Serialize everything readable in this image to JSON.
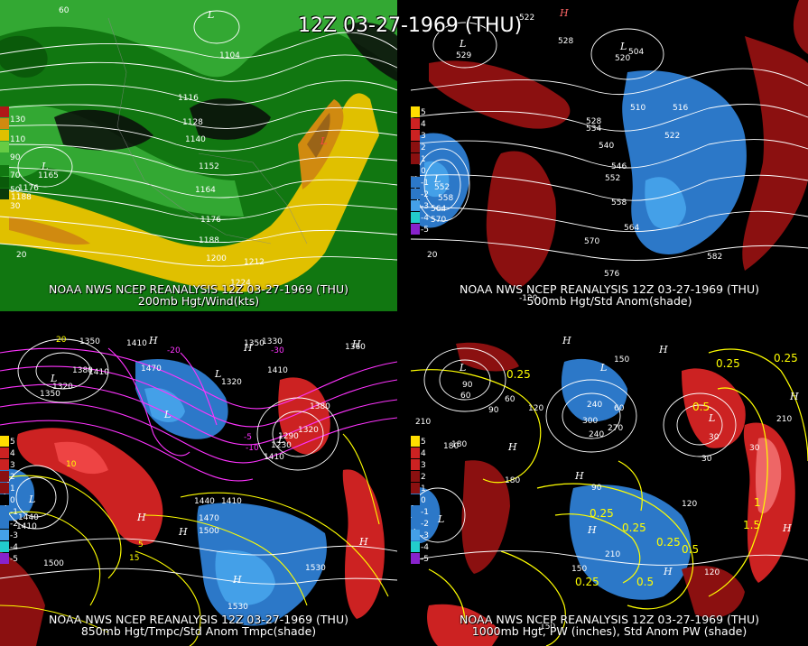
{
  "header": {
    "title": "12Z 03-27-1969 (THU)"
  },
  "panels": [
    {
      "id": "p1",
      "caption_line1": "NOAA NWS NCEP REANALYSIS 12Z 03-27-1969 (THU)",
      "caption_line2": "200mb Hgt/Wind(kts)",
      "legend": [
        "130",
        "110",
        "90",
        "70",
        "50",
        "30"
      ],
      "contour_labels": [
        "1104",
        "1116",
        "1128",
        "1140",
        "1152",
        "1164",
        "1176",
        "1188",
        "1200",
        "1212",
        "1224",
        "1176",
        "1188",
        "1165",
        "20",
        "60"
      ],
      "centers": [
        "L",
        "L",
        "L"
      ]
    },
    {
      "id": "p2",
      "caption_line1": "NOAA NWS NCEP REANALYSIS 12Z 03-27-1969 (THU)",
      "caption_line2": "500mb Hgt/Std Anom(shade)",
      "legend": [
        "5",
        "4",
        "3",
        "2",
        "1",
        "0",
        "-1",
        "-2",
        "-3",
        "-4",
        "-5"
      ],
      "contour_labels": [
        "522",
        "528",
        "504",
        "510",
        "516",
        "522",
        "528",
        "534",
        "540",
        "546",
        "552",
        "558",
        "564",
        "570",
        "576",
        "582",
        "552",
        "558",
        "564",
        "570",
        "20",
        "-120",
        "529",
        "520"
      ],
      "centers": [
        "H",
        "L",
        "L",
        "L"
      ]
    },
    {
      "id": "p3",
      "caption_line1": "NOAA NWS NCEP REANALYSIS 12Z 03-27-1969 (THU)",
      "caption_line2": "850mb Hgt/Tmpc/Std Anom Tmpc(shade)",
      "legend": [
        "5",
        "4",
        "3",
        "2",
        "1",
        "0",
        "-1",
        "-2",
        "-3",
        "-4",
        "-5"
      ],
      "contour_labels": [
        "1350",
        "1380",
        "1320",
        "1350",
        "1410",
        "1470",
        "1410",
        "1320",
        "1350",
        "1410",
        "1330",
        "1360",
        "1380",
        "1290",
        "1320",
        "1230",
        "1410",
        "1440",
        "1410",
        "1470",
        "1500",
        "1530",
        "1530",
        "1500",
        "1440",
        "1410",
        "10",
        "5",
        "15",
        "-5",
        "-10",
        "20",
        "-20",
        "-30"
      ],
      "centers": [
        "H",
        "H",
        "H",
        "L",
        "L",
        "L",
        "L",
        "H",
        "H",
        "H",
        "H",
        "L"
      ]
    },
    {
      "id": "p4",
      "caption_line1": "NOAA NWS NCEP REANALYSIS 12Z 03-27-1969 (THU)",
      "caption_line2": "1000mb Hgt, PW (inches), Std Anom PW (shade)",
      "legend": [
        "5",
        "4",
        "3",
        "2",
        "1",
        "0",
        "-1",
        "-2",
        "-3",
        "-4",
        "-5"
      ],
      "contour_labels": [
        "0.25",
        "0.5",
        "0.25",
        "0.25",
        "0.25",
        "0.5",
        "0.25",
        "0.25",
        "0.5",
        "1.5",
        "0.25",
        "1",
        "30",
        "60",
        "90",
        "120",
        "150",
        "180",
        "210",
        "240",
        "270",
        "300",
        "180",
        "210",
        "150",
        "120",
        "90",
        "60",
        "30",
        "210",
        "240",
        "180",
        "150",
        "120",
        "90",
        "60",
        "30"
      ],
      "centers": [
        "H",
        "L",
        "L",
        "H",
        "H",
        "H",
        "H",
        "L",
        "H",
        "H",
        "L",
        "H"
      ]
    }
  ],
  "colors": {
    "background": "#000000",
    "wind_green_dark": "#117711",
    "wind_green": "#33a833",
    "wind_green_light": "#66cc44",
    "wind_yellow": "#e0c000",
    "wind_orange": "#d08a10",
    "wind_brown": "#9a6418",
    "wind_red": "#b01818",
    "anom_red_dark": "#8b1010",
    "anom_red": "#cc2222",
    "anom_blue": "#2c78c8",
    "anom_blue_light": "#44a0e8",
    "pw_yellow": "#ffff00",
    "temp_magenta": "#ff33ff"
  }
}
